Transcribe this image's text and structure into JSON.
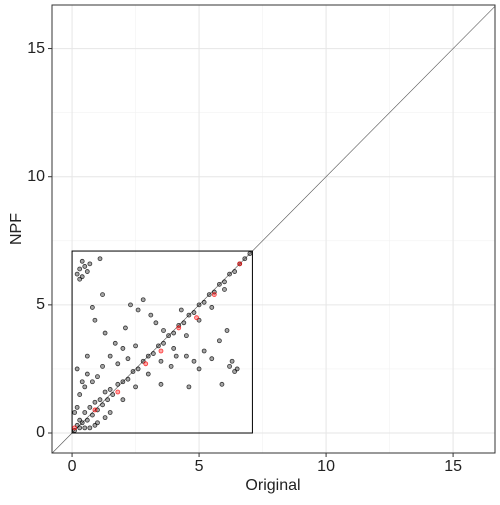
{
  "chart_data": {
    "type": "scatter",
    "xlabel": "Original",
    "ylabel": "NPF",
    "xlim": [
      -0.79,
      16.65
    ],
    "ylim": [
      -0.78,
      16.7
    ],
    "xticks": [
      0,
      5,
      10,
      15
    ],
    "yticks": [
      0,
      5,
      10,
      15
    ],
    "minor_xticks": [
      2.5,
      7.5,
      12.5
    ],
    "minor_yticks": [
      2.5,
      7.5,
      12.5
    ],
    "grid": true,
    "diagonal": true,
    "box": {
      "xlim": [
        0,
        7.1
      ],
      "ylim": [
        0,
        7.1
      ]
    },
    "series": [
      {
        "color": "#000000",
        "x": [
          0.2,
          0.3,
          0.4,
          0.5,
          0.6,
          0.7,
          0.8,
          0.9,
          1.0,
          1.1,
          1.2,
          1.3,
          1.4,
          1.5,
          1.6,
          1.8,
          2.0,
          2.2,
          2.4,
          2.6,
          2.8,
          3.0,
          3.2,
          3.4,
          3.6,
          3.8,
          4.0,
          4.2,
          4.4,
          4.6,
          4.8,
          5.0,
          5.2,
          5.4,
          5.6,
          5.8,
          6.0,
          6.2,
          6.4,
          6.6,
          6.8,
          7.0,
          1.0,
          1.5,
          2.0,
          2.5,
          3.0,
          3.5,
          4.0,
          4.5,
          5.0,
          5.5,
          6.0,
          0.1,
          0.2,
          0.3,
          0.4,
          0.5,
          0.6,
          0.1,
          0.8,
          1.0,
          1.2,
          0.5,
          0.9,
          0.3,
          0.7,
          1.3,
          0.2,
          0.6,
          0.2,
          0.3,
          0.4,
          0.5,
          0.6,
          0.3,
          0.7,
          1.1,
          0.4,
          0.8,
          1.2,
          2.3,
          2.6,
          2.1,
          1.7,
          2.0,
          1.3,
          0.9,
          2.8,
          3.1,
          3.3,
          3.6,
          2.2,
          2.5,
          1.8,
          1.5,
          4.5,
          4.8,
          5.2,
          5.5,
          5.8,
          6.1,
          5.0,
          6.2,
          6.4,
          6.3,
          6.5,
          5.9,
          4.3,
          4.1,
          3.9,
          3.5,
          4.6
        ],
        "y": [
          0.3,
          0.5,
          0.4,
          0.8,
          0.5,
          1.0,
          0.7,
          1.2,
          0.9,
          1.3,
          1.1,
          1.6,
          1.3,
          1.7,
          1.5,
          1.9,
          2.0,
          2.1,
          2.4,
          2.5,
          2.8,
          3.0,
          3.1,
          3.4,
          3.5,
          3.8,
          3.9,
          4.2,
          4.3,
          4.6,
          4.7,
          5.0,
          5.1,
          5.4,
          5.5,
          5.8,
          5.9,
          6.2,
          6.3,
          6.6,
          6.8,
          7.0,
          0.4,
          0.8,
          1.3,
          1.8,
          2.3,
          2.8,
          3.3,
          3.8,
          4.4,
          4.9,
          5.6,
          0.1,
          1.0,
          1.5,
          2.0,
          1.8,
          2.3,
          0.8,
          2.0,
          2.2,
          2.6,
          0.2,
          0.3,
          0.2,
          0.2,
          0.6,
          2.5,
          3.0,
          6.2,
          6.4,
          6.1,
          6.5,
          6.3,
          6.0,
          6.6,
          6.8,
          6.7,
          4.9,
          5.4,
          5.0,
          4.8,
          4.1,
          3.5,
          3.3,
          3.9,
          4.4,
          5.2,
          4.6,
          4.3,
          4.0,
          2.9,
          3.4,
          2.7,
          3.0,
          3.0,
          2.8,
          3.2,
          2.9,
          3.6,
          4.0,
          2.5,
          2.6,
          2.4,
          2.8,
          2.5,
          1.9,
          4.8,
          3.0,
          2.6,
          1.9,
          1.8
        ]
      },
      {
        "color": "#ff0000",
        "x": [
          0.1,
          0.9,
          1.8,
          2.9,
          3.5,
          4.2,
          4.9,
          5.6,
          6.6
        ],
        "y": [
          0.2,
          0.9,
          1.6,
          2.7,
          3.2,
          4.1,
          4.5,
          5.4,
          6.6
        ]
      }
    ]
  }
}
